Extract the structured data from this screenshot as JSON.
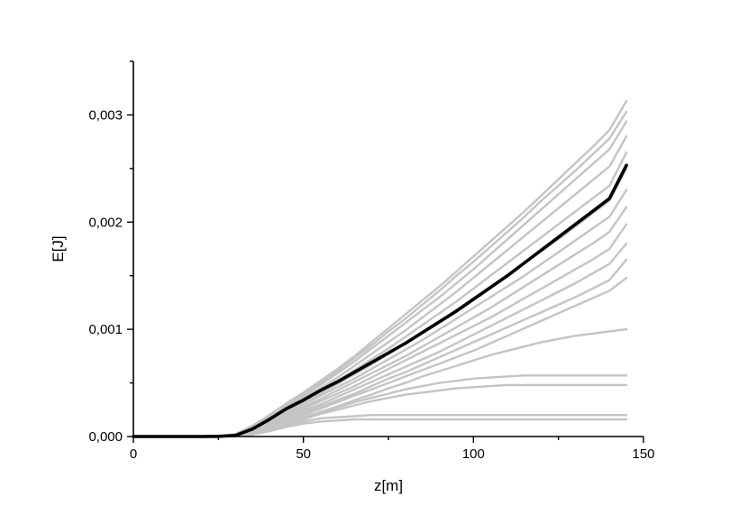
{
  "chart_data": {
    "type": "line",
    "title": "",
    "xlabel": "z[m]",
    "ylabel": "E[J]",
    "xlim": [
      0,
      150
    ],
    "ylim": [
      0,
      0.0035
    ],
    "x_ticks": [
      0,
      50,
      100,
      150
    ],
    "x_tick_labels": [
      "0",
      "50",
      "100",
      "150"
    ],
    "y_ticks": [
      0,
      0.001,
      0.002,
      0.003
    ],
    "y_tick_labels": [
      "0,000",
      "0,001",
      "0,002",
      "0,003"
    ],
    "grid": false,
    "legend": "none",
    "colors": {
      "ensemble": "#c4c4c4",
      "mean": "#000000"
    },
    "x": [
      0,
      10,
      20,
      25,
      30,
      35,
      40,
      45,
      50,
      55,
      60,
      65,
      70,
      75,
      80,
      85,
      90,
      95,
      100,
      105,
      110,
      115,
      120,
      125,
      130,
      135,
      140,
      145
    ],
    "series": [
      {
        "role": "mean",
        "values": [
          0,
          0,
          0,
          2e-06,
          1e-05,
          7e-05,
          0.00016,
          0.00026,
          0.00034,
          0.00043,
          0.00051,
          0.0006,
          0.00069,
          0.00078,
          0.00087,
          0.00097,
          0.00107,
          0.00117,
          0.00128,
          0.00139,
          0.0015,
          0.00162,
          0.00174,
          0.00186,
          0.00198,
          0.0021,
          0.00222,
          0.00253
        ]
      },
      {
        "role": "ensemble",
        "values": [
          0,
          0,
          0,
          3e-06,
          2e-05,
          0.0001,
          0.0002,
          0.00031,
          0.00041,
          0.00052,
          0.00063,
          0.00075,
          0.00088,
          0.00101,
          0.00114,
          0.00127,
          0.0014,
          0.00154,
          0.00168,
          0.00182,
          0.00196,
          0.0021,
          0.00225,
          0.0024,
          0.00255,
          0.0027,
          0.00286,
          0.00313
        ]
      },
      {
        "role": "ensemble",
        "values": [
          0,
          0,
          0,
          3e-06,
          2e-05,
          0.0001,
          0.00019,
          0.0003,
          0.0004,
          0.0005,
          0.00061,
          0.00073,
          0.00085,
          0.00098,
          0.0011,
          0.00123,
          0.00136,
          0.0015,
          0.00163,
          0.00177,
          0.00191,
          0.00205,
          0.0022,
          0.00234,
          0.00248,
          0.00263,
          0.00278,
          0.00303
        ]
      },
      {
        "role": "ensemble",
        "values": [
          0,
          0,
          0,
          3e-06,
          2e-05,
          9e-05,
          0.00018,
          0.00029,
          0.00038,
          0.00048,
          0.00059,
          0.0007,
          0.00082,
          0.00094,
          0.00106,
          0.00118,
          0.0013,
          0.00143,
          0.00156,
          0.0017,
          0.00184,
          0.00198,
          0.00212,
          0.00226,
          0.0024,
          0.00254,
          0.00268,
          0.00294
        ]
      },
      {
        "role": "ensemble",
        "values": [
          0,
          0,
          0,
          2e-06,
          1e-05,
          8e-05,
          0.00017,
          0.00027,
          0.00036,
          0.00045,
          0.00055,
          0.00066,
          0.00077,
          0.00088,
          0.00099,
          0.00111,
          0.00123,
          0.00135,
          0.00148,
          0.00161,
          0.00174,
          0.00187,
          0.002,
          0.00213,
          0.00226,
          0.00239,
          0.00252,
          0.0028
        ]
      },
      {
        "role": "ensemble",
        "values": [
          0,
          0,
          0,
          2e-06,
          1e-05,
          8e-05,
          0.00016,
          0.00025,
          0.00034,
          0.00043,
          0.00052,
          0.00062,
          0.00072,
          0.00082,
          0.00093,
          0.00104,
          0.00115,
          0.00126,
          0.00138,
          0.0015,
          0.00162,
          0.00174,
          0.00186,
          0.00198,
          0.0021,
          0.00222,
          0.00234,
          0.00265
        ]
      },
      {
        "role": "ensemble",
        "values": [
          0,
          0,
          0,
          2e-06,
          1e-05,
          7e-05,
          0.00015,
          0.00024,
          0.00032,
          0.0004,
          0.00049,
          0.00058,
          0.00067,
          0.00077,
          0.00087,
          0.00097,
          0.00107,
          0.00118,
          0.00129,
          0.0014,
          0.00151,
          0.00162,
          0.00173,
          0.00184,
          0.00196,
          0.00208,
          0.0022,
          0.0025
        ]
      },
      {
        "role": "ensemble",
        "values": [
          0,
          0,
          0,
          2e-06,
          1e-05,
          6e-05,
          0.00014,
          0.00022,
          0.0003,
          0.00038,
          0.00046,
          0.00054,
          0.00063,
          0.00072,
          0.00081,
          0.0009,
          0.001,
          0.0011,
          0.0012,
          0.0013,
          0.0014,
          0.0015,
          0.00161,
          0.00172,
          0.00183,
          0.00194,
          0.00205,
          0.0023
        ]
      },
      {
        "role": "ensemble",
        "values": [
          0,
          0,
          0,
          1e-06,
          1e-05,
          6e-05,
          0.00013,
          0.00021,
          0.00028,
          0.00035,
          0.00043,
          0.00051,
          0.00059,
          0.00067,
          0.00075,
          0.00084,
          0.00093,
          0.00102,
          0.00111,
          0.0012,
          0.0013,
          0.0014,
          0.0015,
          0.0016,
          0.0017,
          0.0018,
          0.00191,
          0.00214
        ]
      },
      {
        "role": "ensemble",
        "values": [
          0,
          0,
          0,
          1e-06,
          1e-05,
          5e-05,
          0.00012,
          0.00019,
          0.00026,
          0.00033,
          0.0004,
          0.00047,
          0.00055,
          0.00063,
          0.00071,
          0.00079,
          0.00087,
          0.00095,
          0.00103,
          0.00111,
          0.0012,
          0.00129,
          0.00138,
          0.00147,
          0.00156,
          0.00165,
          0.00175,
          0.00198
        ]
      },
      {
        "role": "ensemble",
        "values": [
          0,
          0,
          0,
          1e-06,
          1e-05,
          5e-05,
          0.00011,
          0.00018,
          0.00024,
          0.0003,
          0.00037,
          0.00044,
          0.00051,
          0.00058,
          0.00065,
          0.00072,
          0.00079,
          0.00087,
          0.00095,
          0.00103,
          0.00111,
          0.00119,
          0.00127,
          0.00135,
          0.00143,
          0.00152,
          0.00161,
          0.0018
        ]
      },
      {
        "role": "ensemble",
        "values": [
          0,
          0,
          0,
          1e-06,
          1e-05,
          4e-05,
          0.0001,
          0.00016,
          0.00022,
          0.00028,
          0.00034,
          0.0004,
          0.00047,
          0.00054,
          0.0006,
          0.00067,
          0.00074,
          0.00081,
          0.00088,
          0.00095,
          0.00102,
          0.00109,
          0.00116,
          0.00123,
          0.0013,
          0.00138,
          0.00146,
          0.00165
        ]
      },
      {
        "role": "ensemble",
        "values": [
          0,
          0,
          0,
          1e-06,
          1e-05,
          4e-05,
          9e-05,
          0.00015,
          0.0002,
          0.00026,
          0.00032,
          0.00038,
          0.00044,
          0.0005,
          0.00056,
          0.00062,
          0.00068,
          0.00074,
          0.0008,
          0.00087,
          0.00094,
          0.00101,
          0.00108,
          0.00115,
          0.00122,
          0.00129,
          0.00136,
          0.00148
        ]
      },
      {
        "role": "ensemble",
        "values": [
          0,
          0,
          0,
          1e-06,
          5e-06,
          3e-05,
          8e-05,
          0.00013,
          0.00018,
          0.00023,
          0.00028,
          0.00034,
          0.00039,
          0.00045,
          0.0005,
          0.00056,
          0.00061,
          0.00066,
          0.00071,
          0.00076,
          0.0008,
          0.00084,
          0.00088,
          0.00091,
          0.00094,
          0.00096,
          0.00098,
          0.001
        ]
      },
      {
        "role": "ensemble",
        "values": [
          0,
          0,
          0,
          1e-06,
          5e-06,
          3e-05,
          7e-05,
          0.00012,
          0.00017,
          0.00022,
          0.00027,
          0.00032,
          0.00036,
          0.0004,
          0.00044,
          0.00047,
          0.0005,
          0.00052,
          0.00054,
          0.00055,
          0.00056,
          0.00057,
          0.00057,
          0.00057,
          0.00057,
          0.00057,
          0.00057,
          0.00057
        ]
      },
      {
        "role": "ensemble",
        "values": [
          0,
          0,
          0,
          1e-06,
          4e-06,
          2e-05,
          6e-05,
          0.00011,
          0.00016,
          0.00021,
          0.00025,
          0.00029,
          0.00033,
          0.00036,
          0.00039,
          0.00041,
          0.00043,
          0.00045,
          0.00046,
          0.00047,
          0.00048,
          0.00048,
          0.00048,
          0.00048,
          0.00048,
          0.00048,
          0.00048,
          0.00048
        ]
      },
      {
        "role": "ensemble",
        "values": [
          0,
          0,
          0,
          1e-06,
          3e-06,
          2e-05,
          5e-05,
          0.0001,
          0.00014,
          0.00017,
          0.00018,
          0.00019,
          0.0002,
          0.0002,
          0.0002,
          0.0002,
          0.0002,
          0.0002,
          0.0002,
          0.0002,
          0.0002,
          0.0002,
          0.0002,
          0.0002,
          0.0002,
          0.0002,
          0.0002,
          0.0002
        ]
      },
      {
        "role": "ensemble",
        "values": [
          0,
          0,
          0,
          1e-06,
          3e-06,
          2e-05,
          5e-05,
          9e-05,
          0.00012,
          0.00014,
          0.00015,
          0.00016,
          0.00016,
          0.00016,
          0.00016,
          0.00016,
          0.00016,
          0.00016,
          0.00016,
          0.00016,
          0.00016,
          0.00016,
          0.00016,
          0.00016,
          0.00016,
          0.00016,
          0.00016,
          0.00016
        ]
      }
    ]
  }
}
